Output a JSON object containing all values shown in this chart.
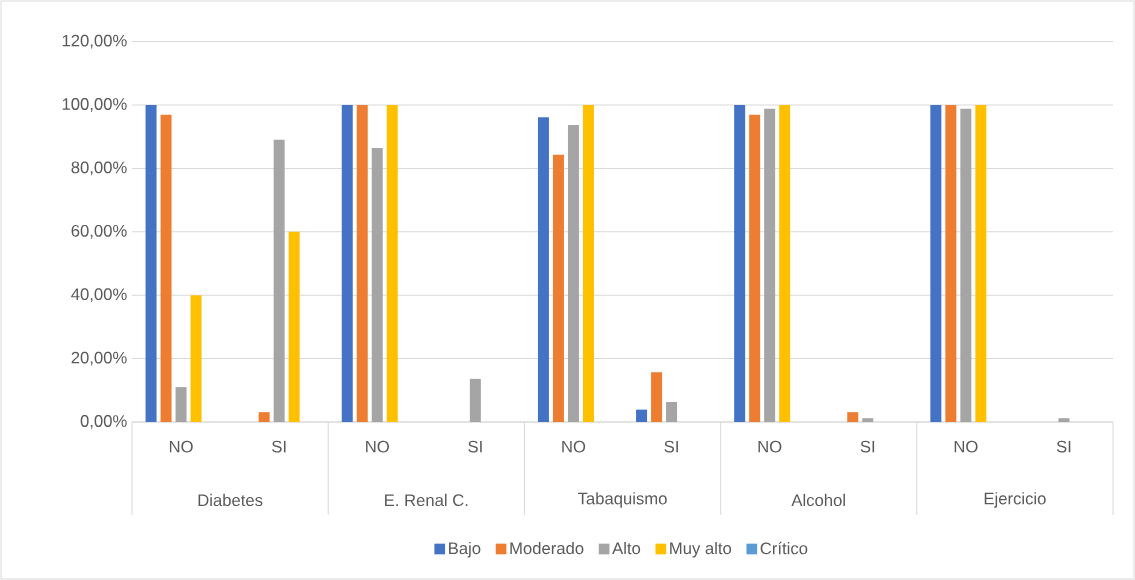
{
  "chart_data": {
    "type": "bar",
    "categories": [
      "NO",
      "SI",
      "NO",
      "SI",
      "NO",
      "SI",
      "NO",
      "SI",
      "NO",
      "SI"
    ],
    "annotations": [
      "Diabetes",
      "E. Renal C.",
      "Tabaquismo",
      "Alcohol",
      "Ejercicio"
    ],
    "series": [
      {
        "name": "Bajo",
        "color": "#4472c4",
        "values": [
          100,
          0,
          100,
          0,
          96.1,
          3.9,
          100,
          0,
          100,
          0
        ]
      },
      {
        "name": "Moderado",
        "color": "#ed7d31",
        "values": [
          96.9,
          3.1,
          100,
          0,
          84.3,
          15.7,
          96.9,
          3.1,
          100,
          0
        ]
      },
      {
        "name": "Alto",
        "color": "#a5a5a5",
        "values": [
          11,
          89,
          86.4,
          13.6,
          93.7,
          6.3,
          98.8,
          1.2,
          98.8,
          1.2
        ]
      },
      {
        "name": "Muy alto",
        "color": "#ffc000",
        "values": [
          40,
          60,
          100,
          0,
          100,
          0,
          100,
          0,
          100,
          0
        ]
      },
      {
        "name": "Crítico",
        "color": "#5b9bd5",
        "values": [
          0,
          0,
          0,
          0,
          0,
          0,
          0,
          0,
          0,
          0
        ]
      }
    ],
    "ylim": [
      0,
      120
    ],
    "yticks": [
      {
        "value": 0,
        "label": "0,00%"
      },
      {
        "value": 20,
        "label": "20,00%"
      },
      {
        "value": 40,
        "label": "40,00%"
      },
      {
        "value": 60,
        "label": "60,00%"
      },
      {
        "value": 80,
        "label": "80,00%"
      },
      {
        "value": 100,
        "label": "100,00%"
      },
      {
        "value": 120,
        "label": "120,00%"
      }
    ],
    "grid": "y",
    "legend": "bottom"
  }
}
